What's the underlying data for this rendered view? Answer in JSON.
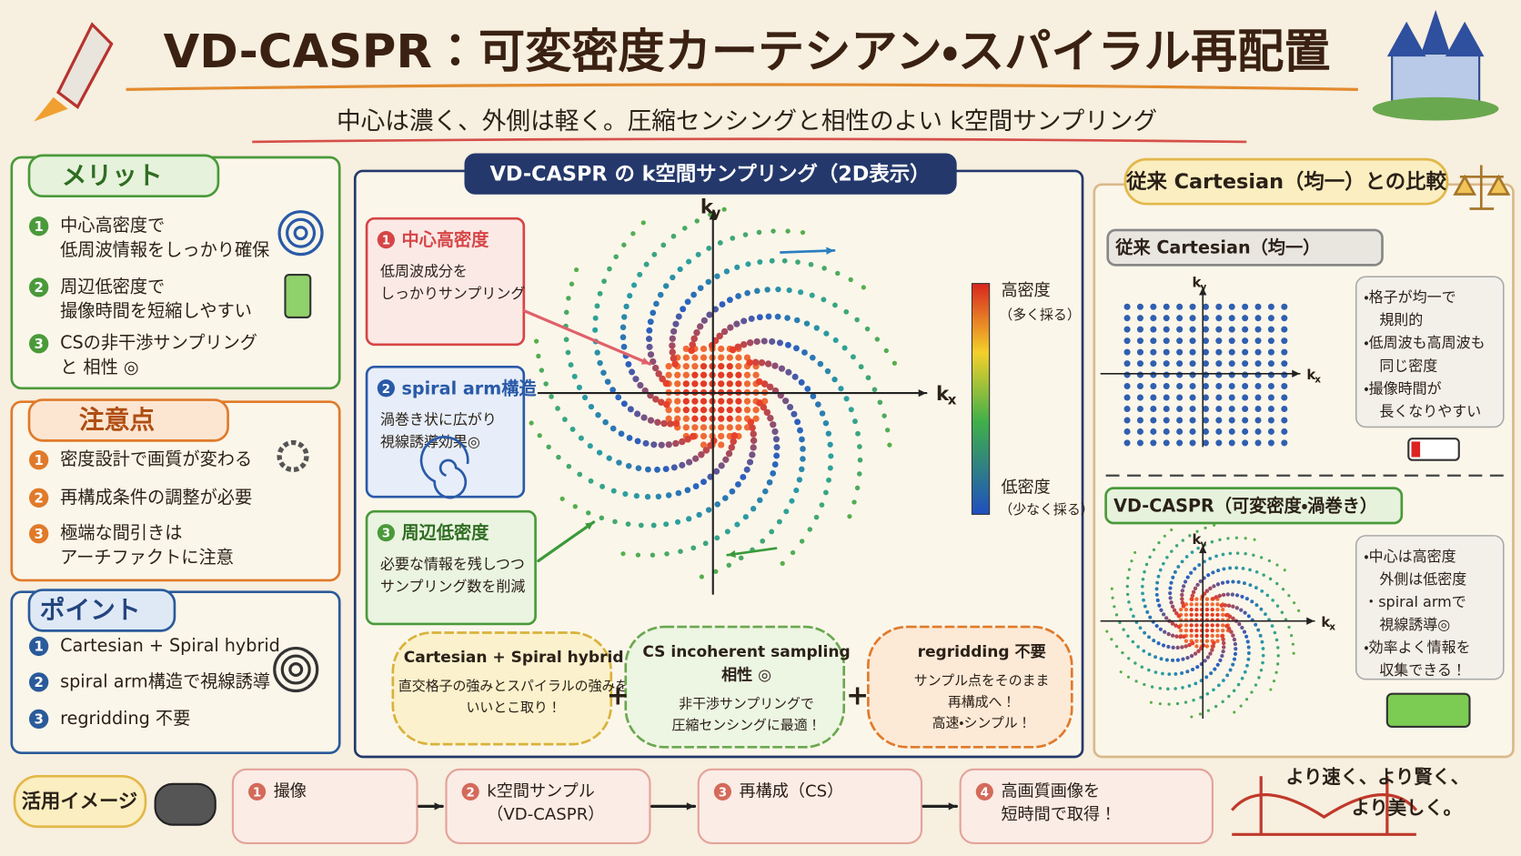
{
  "header": {
    "title": "VD-CASPR：可変密度カーテシアン・スパイラル再配置",
    "subtitle": "中心は濃く、外側は軽く。圧縮センシングと相性のよい k空間サンプリング"
  },
  "merits": {
    "title": "メリット",
    "items": [
      {
        "num": 1,
        "lines": [
          "中心高密度で",
          "低周波情報をしっかり確保"
        ]
      },
      {
        "num": 2,
        "lines": [
          "周辺低密度で",
          "撮像時間を短縮しやすい"
        ]
      },
      {
        "num": 3,
        "lines": [
          "CSの非干渉サンプリング",
          "と 相性 ◎"
        ]
      }
    ]
  },
  "cautions": {
    "title": "注意点",
    "items": [
      {
        "num": 1,
        "lines": [
          "密度設計で画質が変わる"
        ]
      },
      {
        "num": 2,
        "lines": [
          "再構成条件の調整が必要"
        ]
      },
      {
        "num": 3,
        "lines": [
          "極端な間引きは",
          "アーチファクトに注意"
        ]
      }
    ]
  },
  "points": {
    "title": "ポイント",
    "items": [
      {
        "num": 1,
        "lines": [
          "Cartesian + Spiral hybrid"
        ]
      },
      {
        "num": 2,
        "lines": [
          "spiral arm構造で視線誘導"
        ]
      },
      {
        "num": 3,
        "lines": [
          "regridding 不要"
        ]
      }
    ]
  },
  "center": {
    "title": "VD-CASPR の k空間サンプリング（2D表示）",
    "axis_y": {
      "main": "k",
      "sub": "y"
    },
    "axis_x": {
      "main": "k",
      "sub": "x"
    },
    "callouts": [
      {
        "num": 1,
        "title": "中心高密度",
        "lines": [
          "低周波成分を",
          "しっかりサンプリング"
        ]
      },
      {
        "num": 2,
        "title": "spiral arm構造",
        "lines": [
          "渦巻き状に広がり",
          "視線誘導効果◎"
        ]
      },
      {
        "num": 3,
        "title": "周辺低密度",
        "lines": [
          "必要な情報を残しつつ",
          "サンプリング数を削減"
        ]
      }
    ],
    "colorbar": {
      "high": "高密度",
      "high_note": "（多く採る）",
      "low": "低密度",
      "low_note": "（少なく採る）"
    },
    "bubbles": [
      {
        "title": [
          "Cartesian + Spiral hybrid"
        ],
        "lines": [
          "直交格子の強みとスパイラルの強みを",
          "いいとこ取り！"
        ]
      },
      {
        "title": [
          "CS incoherent sampling",
          "相性 ◎"
        ],
        "lines": [
          "非干渉サンプリングで",
          "圧縮センシングに最適！"
        ]
      },
      {
        "title": [
          "regridding 不要"
        ],
        "lines": [
          "サンプル点をそのまま",
          "再構成へ！",
          "高速・シンプル！"
        ]
      }
    ],
    "plus": "+"
  },
  "comparison": {
    "title": "従来 Cartesian（均一）との比較",
    "conventional": {
      "title": "従来 Cartesian（均一）",
      "notes": [
        "・格子が均一で",
        "規則的",
        "・低周波も高周波も",
        "同じ密度",
        "・撮像時間が",
        "長くなりやすい"
      ]
    },
    "vdcaspr": {
      "title": "VD-CASPR（可変密度・渦巻き）",
      "notes": [
        "・中心は高密度",
        "外側は低密度",
        "・spiral armで",
        "視線誘導◎",
        "・効率よく情報を",
        "収集できる！"
      ]
    }
  },
  "workflow": {
    "label": "活用イメージ",
    "steps": [
      {
        "num": 1,
        "lines": [
          "撮像"
        ]
      },
      {
        "num": 2,
        "lines": [
          "k空間サンプル",
          "（VD-CASPR）"
        ]
      },
      {
        "num": 3,
        "lines": [
          "再構成（CS）"
        ]
      },
      {
        "num": 4,
        "lines": [
          "高画質画像を",
          "短時間で取得！"
        ]
      }
    ],
    "slogan": [
      "より速く、より賢く、",
      "より美しく。"
    ]
  }
}
